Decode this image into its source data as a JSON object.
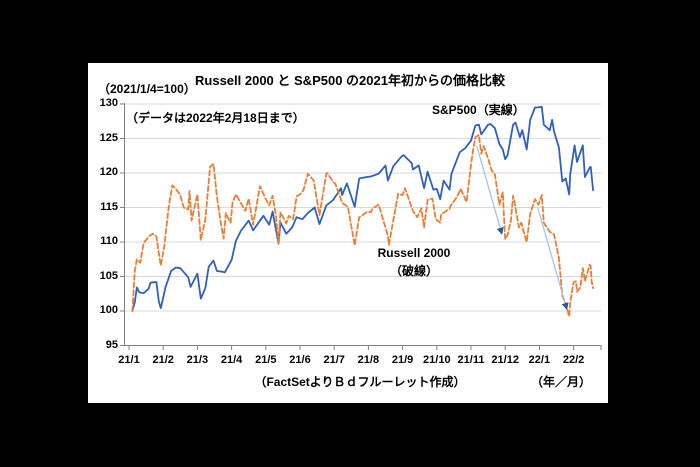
{
  "frame": {
    "background_color": "#000000",
    "panel_color": "#ffffff"
  },
  "header": {
    "index_note": "（2021/1/4=100）"
  },
  "chart_data": {
    "type": "line",
    "title": "Russell 2000 と S&P500 の2021年初からの価格比較",
    "data_note": "（データは2022年2月18日まで）",
    "source_note": "（FactSetよりＢｄフルーレット作成）",
    "grid": "horizontal",
    "legend_position": "inline-annotations",
    "x_axis": {
      "unit_label": "（年／月）",
      "tick_labels": [
        "21/1",
        "21/2",
        "21/3",
        "21/4",
        "21/5",
        "21/6",
        "21/7",
        "21/8",
        "21/9",
        "21/10",
        "21/11",
        "21/12",
        "22/1",
        "22/2"
      ],
      "range_months": [
        0,
        13.9
      ]
    },
    "y_axis": {
      "ticks": [
        130,
        125,
        120,
        115,
        110,
        105,
        100,
        95
      ],
      "range": [
        95,
        130
      ]
    },
    "colors": {
      "sp500": "#2F5FBF",
      "russell2000": "#ED7D31",
      "gridline": "#D9D9D9",
      "axis": "#808080",
      "arrow_shaft": "#9DC3E6",
      "arrow_head": "#2F5597"
    },
    "series": [
      {
        "name": "S&P500",
        "label": "S&P500（実線）",
        "style": "solid",
        "points": [
          [
            0.1,
            100
          ],
          [
            0.17,
            101.3
          ],
          [
            0.23,
            103.4
          ],
          [
            0.3,
            102.7
          ],
          [
            0.43,
            102.6
          ],
          [
            0.57,
            103.2
          ],
          [
            0.63,
            104.1
          ],
          [
            0.8,
            104.2
          ],
          [
            0.87,
            101.4
          ],
          [
            0.93,
            100.4
          ],
          [
            1.07,
            103.5
          ],
          [
            1.23,
            105.8
          ],
          [
            1.37,
            106.3
          ],
          [
            1.5,
            106.2
          ],
          [
            1.73,
            104.9
          ],
          [
            1.8,
            103.5
          ],
          [
            2.0,
            105.4
          ],
          [
            2.1,
            101.8
          ],
          [
            2.23,
            103.3
          ],
          [
            2.33,
            106.4
          ],
          [
            2.47,
            107.3
          ],
          [
            2.57,
            105.8
          ],
          [
            2.73,
            105.7
          ],
          [
            2.8,
            105.6
          ],
          [
            3.0,
            107.4
          ],
          [
            3.13,
            110.2
          ],
          [
            3.27,
            111.6
          ],
          [
            3.5,
            113.1
          ],
          [
            3.63,
            111.7
          ],
          [
            3.93,
            113.8
          ],
          [
            4.1,
            112.5
          ],
          [
            4.2,
            114.4
          ],
          [
            4.37,
            109.8
          ],
          [
            4.43,
            112.8
          ],
          [
            4.6,
            111.2
          ],
          [
            4.77,
            112.1
          ],
          [
            4.9,
            113.6
          ],
          [
            5.07,
            113.3
          ],
          [
            5.23,
            114.2
          ],
          [
            5.43,
            115.0
          ],
          [
            5.57,
            112.6
          ],
          [
            5.77,
            115.3
          ],
          [
            5.97,
            116.1
          ],
          [
            6.2,
            117.8
          ],
          [
            6.23,
            116.8
          ],
          [
            6.37,
            118.5
          ],
          [
            6.6,
            115.1
          ],
          [
            6.73,
            119.2
          ],
          [
            6.93,
            119.4
          ],
          [
            7.07,
            119.5
          ],
          [
            7.3,
            119.9
          ],
          [
            7.5,
            121.1
          ],
          [
            7.57,
            118.9
          ],
          [
            7.73,
            121.0
          ],
          [
            7.97,
            122.4
          ],
          [
            8.03,
            122.6
          ],
          [
            8.27,
            121.4
          ],
          [
            8.3,
            120.5
          ],
          [
            8.47,
            121.1
          ],
          [
            8.63,
            117.8
          ],
          [
            8.73,
            120.2
          ],
          [
            8.9,
            117.6
          ],
          [
            9.0,
            117.7
          ],
          [
            9.1,
            116.2
          ],
          [
            9.2,
            118.9
          ],
          [
            9.37,
            117.6
          ],
          [
            9.43,
            119.9
          ],
          [
            9.67,
            123.0
          ],
          [
            9.83,
            123.6
          ],
          [
            10.0,
            124.7
          ],
          [
            10.13,
            126.9
          ],
          [
            10.23,
            127.0
          ],
          [
            10.3,
            125.6
          ],
          [
            10.5,
            127.0
          ],
          [
            10.57,
            127.1
          ],
          [
            10.7,
            126.5
          ],
          [
            10.83,
            124.2
          ],
          [
            10.93,
            123.4
          ],
          [
            11.0,
            122.0
          ],
          [
            11.07,
            122.6
          ],
          [
            11.23,
            127.0
          ],
          [
            11.3,
            127.3
          ],
          [
            11.43,
            125.2
          ],
          [
            11.5,
            126.2
          ],
          [
            11.63,
            123.4
          ],
          [
            11.73,
            127.7
          ],
          [
            11.87,
            129.5
          ],
          [
            11.93,
            129.5
          ],
          [
            12.07,
            129.6
          ],
          [
            12.13,
            127.0
          ],
          [
            12.3,
            126.2
          ],
          [
            12.37,
            127.7
          ],
          [
            12.43,
            126.0
          ],
          [
            12.57,
            123.7
          ],
          [
            12.67,
            118.8
          ],
          [
            12.77,
            119.2
          ],
          [
            12.87,
            116.9
          ],
          [
            12.9,
            119.8
          ],
          [
            13.03,
            124.0
          ],
          [
            13.1,
            121.6
          ],
          [
            13.27,
            124.0
          ],
          [
            13.33,
            119.4
          ],
          [
            13.47,
            120.8
          ],
          [
            13.5,
            120.9
          ],
          [
            13.57,
            117.5
          ]
        ]
      },
      {
        "name": "Russell 2000",
        "label_line1": "Russell 2000",
        "label_line2": "（破線）",
        "style": "dashed",
        "points": [
          [
            0.1,
            100
          ],
          [
            0.17,
            105.8
          ],
          [
            0.23,
            107.5
          ],
          [
            0.33,
            107.0
          ],
          [
            0.43,
            109.9
          ],
          [
            0.63,
            111.0
          ],
          [
            0.7,
            111.2
          ],
          [
            0.8,
            110.8
          ],
          [
            0.87,
            108.4
          ],
          [
            0.93,
            106.6
          ],
          [
            1.03,
            109.3
          ],
          [
            1.17,
            115.4
          ],
          [
            1.27,
            118.2
          ],
          [
            1.37,
            117.7
          ],
          [
            1.5,
            116.8
          ],
          [
            1.6,
            115.0
          ],
          [
            1.73,
            114.7
          ],
          [
            1.77,
            117.4
          ],
          [
            1.83,
            113.1
          ],
          [
            2.0,
            116.9
          ],
          [
            2.1,
            110.3
          ],
          [
            2.23,
            113.2
          ],
          [
            2.37,
            120.9
          ],
          [
            2.47,
            121.3
          ],
          [
            2.57,
            116.6
          ],
          [
            2.7,
            112.3
          ],
          [
            2.77,
            110.5
          ],
          [
            2.83,
            114.2
          ],
          [
            2.97,
            112.8
          ],
          [
            3.03,
            115.8
          ],
          [
            3.13,
            116.9
          ],
          [
            3.4,
            114.5
          ],
          [
            3.5,
            116.3
          ],
          [
            3.63,
            112.5
          ],
          [
            3.83,
            118.1
          ],
          [
            3.97,
            116.5
          ],
          [
            4.1,
            115.3
          ],
          [
            4.2,
            116.7
          ],
          [
            4.3,
            113.7
          ],
          [
            4.37,
            109.7
          ],
          [
            4.43,
            114.3
          ],
          [
            4.6,
            112.7
          ],
          [
            4.67,
            113.8
          ],
          [
            4.8,
            113.3
          ],
          [
            4.9,
            116.6
          ],
          [
            5.0,
            116.9
          ],
          [
            5.1,
            117.5
          ],
          [
            5.23,
            119.9
          ],
          [
            5.4,
            118.9
          ],
          [
            5.57,
            113.9
          ],
          [
            5.77,
            119.9
          ],
          [
            5.8,
            120.0
          ],
          [
            5.97,
            118.7
          ],
          [
            6.03,
            118.5
          ],
          [
            6.23,
            115.7
          ],
          [
            6.4,
            115.1
          ],
          [
            6.6,
            109.5
          ],
          [
            6.73,
            113.6
          ],
          [
            6.83,
            113.9
          ],
          [
            6.97,
            114.4
          ],
          [
            7.07,
            114.3
          ],
          [
            7.13,
            114.9
          ],
          [
            7.3,
            115.4
          ],
          [
            7.57,
            110.9
          ],
          [
            7.6,
            109.6
          ],
          [
            7.87,
            117.0
          ],
          [
            8.0,
            116.8
          ],
          [
            8.07,
            117.8
          ],
          [
            8.3,
            114.5
          ],
          [
            8.43,
            113.6
          ],
          [
            8.55,
            114.9
          ],
          [
            8.63,
            112.1
          ],
          [
            8.73,
            116.1
          ],
          [
            8.87,
            116.3
          ],
          [
            8.97,
            113.3
          ],
          [
            9.1,
            112.8
          ],
          [
            9.13,
            114.0
          ],
          [
            9.37,
            114.8
          ],
          [
            9.4,
            115.2
          ],
          [
            9.6,
            116.6
          ],
          [
            9.7,
            117.7
          ],
          [
            9.87,
            115.8
          ],
          [
            10.0,
            121.2
          ],
          [
            10.07,
            123.6
          ],
          [
            10.13,
            125.2
          ],
          [
            10.23,
            125.5
          ],
          [
            10.3,
            122.8
          ],
          [
            10.37,
            123.9
          ],
          [
            10.5,
            122.1
          ],
          [
            10.6,
            120.4
          ],
          [
            10.7,
            119.8
          ],
          [
            10.83,
            115.4
          ],
          [
            10.93,
            117.2
          ],
          [
            10.97,
            113.0
          ],
          [
            11.0,
            110.4
          ],
          [
            11.07,
            111.0
          ],
          [
            11.17,
            113.2
          ],
          [
            11.23,
            116.7
          ],
          [
            11.27,
            115.9
          ],
          [
            11.4,
            112.1
          ],
          [
            11.47,
            112.8
          ],
          [
            11.53,
            111.7
          ],
          [
            11.63,
            110.0
          ],
          [
            11.73,
            114.1
          ],
          [
            11.87,
            116.2
          ],
          [
            11.97,
            115.4
          ],
          [
            12.07,
            116.8
          ],
          [
            12.13,
            112.8
          ],
          [
            12.3,
            111.5
          ],
          [
            12.43,
            111.1
          ],
          [
            12.57,
            107.7
          ],
          [
            12.67,
            102.2
          ],
          [
            12.77,
            101.1
          ],
          [
            12.87,
            99.2
          ],
          [
            12.9,
            101.2
          ],
          [
            13.0,
            104.2
          ],
          [
            13.07,
            104.3
          ],
          [
            13.1,
            102.8
          ],
          [
            13.2,
            103.4
          ],
          [
            13.27,
            106.2
          ],
          [
            13.3,
            105.4
          ],
          [
            13.33,
            104.3
          ],
          [
            13.47,
            106.7
          ],
          [
            13.5,
            106.5
          ],
          [
            13.53,
            104.2
          ],
          [
            13.57,
            103.3
          ]
        ]
      }
    ],
    "arrows": [
      {
        "from": [
          10.17,
          123.9
        ],
        "to": [
          10.9,
          111.2
        ]
      },
      {
        "from": [
          11.95,
          115.0
        ],
        "to": [
          12.8,
          100.3
        ]
      }
    ]
  }
}
